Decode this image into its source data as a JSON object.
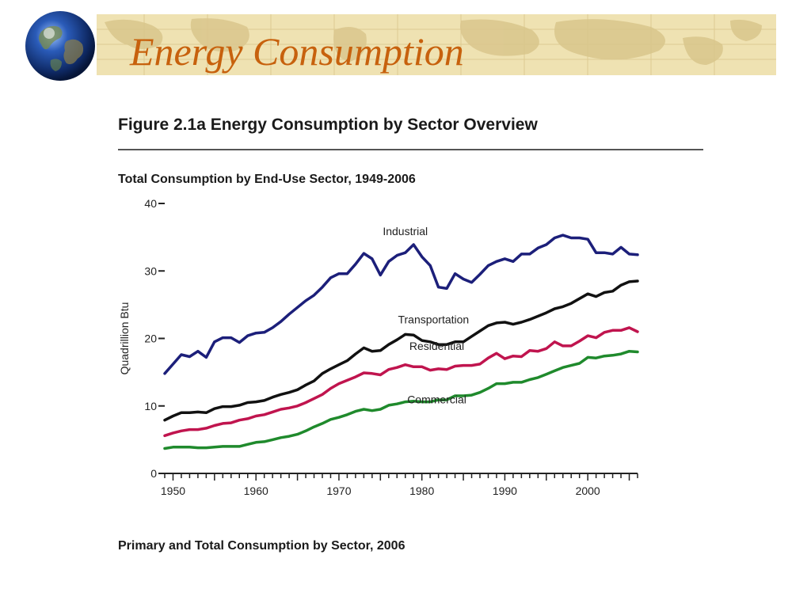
{
  "slide": {
    "title": "Energy Consumption",
    "figure_title": "Figure 2.1a  Energy Consumption by Sector Overview",
    "bottom_heading": "Primary and Total Consumption by Sector, 2006",
    "colors": {
      "banner": "#efe2b2",
      "title": "#c7610d",
      "globe": "#2a5bb8"
    },
    "icons": [
      "globe-icon",
      "world-map-background"
    ]
  },
  "chart_data": {
    "type": "line",
    "title": "Total Consumption by End-Use Sector, 1949-2006",
    "ylabel": "Quadrillion Btu",
    "xlabel": "",
    "xlim": [
      1949,
      2006
    ],
    "ylim": [
      0,
      40
    ],
    "yticks": [
      0,
      10,
      20,
      30,
      40
    ],
    "xticks": [
      1950,
      1960,
      1970,
      1980,
      1990,
      2000
    ],
    "grid": false,
    "x": [
      1949,
      1950,
      1951,
      1952,
      1953,
      1954,
      1955,
      1956,
      1957,
      1958,
      1959,
      1960,
      1961,
      1962,
      1963,
      1964,
      1965,
      1966,
      1967,
      1968,
      1969,
      1970,
      1971,
      1972,
      1973,
      1974,
      1975,
      1976,
      1977,
      1978,
      1979,
      1980,
      1981,
      1982,
      1983,
      1984,
      1985,
      1986,
      1987,
      1988,
      1989,
      1990,
      1991,
      1992,
      1993,
      1994,
      1995,
      1996,
      1997,
      1998,
      1999,
      2000,
      2001,
      2002,
      2003,
      2004,
      2005,
      2006
    ],
    "series": [
      {
        "name": "Industrial",
        "color": "#1c1f7a",
        "values": [
          14.8,
          16.2,
          17.6,
          17.3,
          18.1,
          17.2,
          19.5,
          20.1,
          20.1,
          19.4,
          20.4,
          20.8,
          20.9,
          21.6,
          22.5,
          23.6,
          24.6,
          25.6,
          26.4,
          27.6,
          29.0,
          29.6,
          29.6,
          31.0,
          32.6,
          31.8,
          29.4,
          31.4,
          32.3,
          32.7,
          33.9,
          32.1,
          30.8,
          27.6,
          27.4,
          29.6,
          28.8,
          28.3,
          29.5,
          30.8,
          31.4,
          31.8,
          31.4,
          32.5,
          32.5,
          33.4,
          33.9,
          34.9,
          35.3,
          34.9,
          34.9,
          34.7,
          32.7,
          32.7,
          32.5,
          33.5,
          32.5,
          32.4
        ]
      },
      {
        "name": "Transportation",
        "color": "#111111",
        "values": [
          7.9,
          8.5,
          9.0,
          9.0,
          9.1,
          9.0,
          9.6,
          9.9,
          9.9,
          10.1,
          10.5,
          10.6,
          10.8,
          11.3,
          11.7,
          12.0,
          12.4,
          13.1,
          13.7,
          14.8,
          15.5,
          16.1,
          16.7,
          17.7,
          18.6,
          18.1,
          18.2,
          19.1,
          19.8,
          20.6,
          20.5,
          19.7,
          19.5,
          19.1,
          19.1,
          19.5,
          19.5,
          20.3,
          21.1,
          21.9,
          22.3,
          22.4,
          22.1,
          22.4,
          22.8,
          23.3,
          23.8,
          24.4,
          24.7,
          25.2,
          25.9,
          26.6,
          26.2,
          26.8,
          27.0,
          27.9,
          28.4,
          28.5
        ]
      },
      {
        "name": "Residential",
        "color": "#c0144e",
        "values": [
          5.6,
          6.0,
          6.3,
          6.5,
          6.5,
          6.7,
          7.1,
          7.4,
          7.5,
          7.9,
          8.1,
          8.5,
          8.7,
          9.1,
          9.5,
          9.7,
          10.0,
          10.5,
          11.1,
          11.7,
          12.6,
          13.3,
          13.8,
          14.3,
          14.9,
          14.8,
          14.6,
          15.4,
          15.7,
          16.1,
          15.8,
          15.8,
          15.3,
          15.5,
          15.4,
          15.9,
          16.0,
          16.0,
          16.2,
          17.1,
          17.8,
          17.0,
          17.4,
          17.3,
          18.2,
          18.1,
          18.5,
          19.5,
          18.9,
          18.9,
          19.6,
          20.4,
          20.1,
          20.9,
          21.2,
          21.2,
          21.6,
          21.0
        ]
      },
      {
        "name": "Commercial",
        "color": "#1f8a2c",
        "values": [
          3.7,
          3.9,
          3.9,
          3.9,
          3.8,
          3.8,
          3.9,
          4.0,
          4.0,
          4.0,
          4.3,
          4.6,
          4.7,
          5.0,
          5.3,
          5.5,
          5.8,
          6.3,
          6.9,
          7.4,
          8.0,
          8.3,
          8.7,
          9.2,
          9.5,
          9.3,
          9.5,
          10.1,
          10.3,
          10.6,
          10.7,
          10.6,
          10.6,
          10.9,
          10.9,
          11.5,
          11.5,
          11.6,
          12.0,
          12.6,
          13.3,
          13.3,
          13.5,
          13.5,
          13.9,
          14.2,
          14.7,
          15.2,
          15.7,
          16.0,
          16.3,
          17.2,
          17.1,
          17.4,
          17.5,
          17.7,
          18.1,
          18.0
        ]
      }
    ],
    "annotations": [
      {
        "series": "Industrial",
        "text": "Industrial",
        "x": 1978,
        "y": 35.3
      },
      {
        "series": "Transportation",
        "text": "Transportation",
        "x": 1981.4,
        "y": 22.2
      },
      {
        "series": "Residential",
        "text": "Residential",
        "x": 1981.8,
        "y": 18.3
      },
      {
        "series": "Commercial",
        "text": "Commercial",
        "x": 1981.8,
        "y": 10.4
      }
    ]
  }
}
